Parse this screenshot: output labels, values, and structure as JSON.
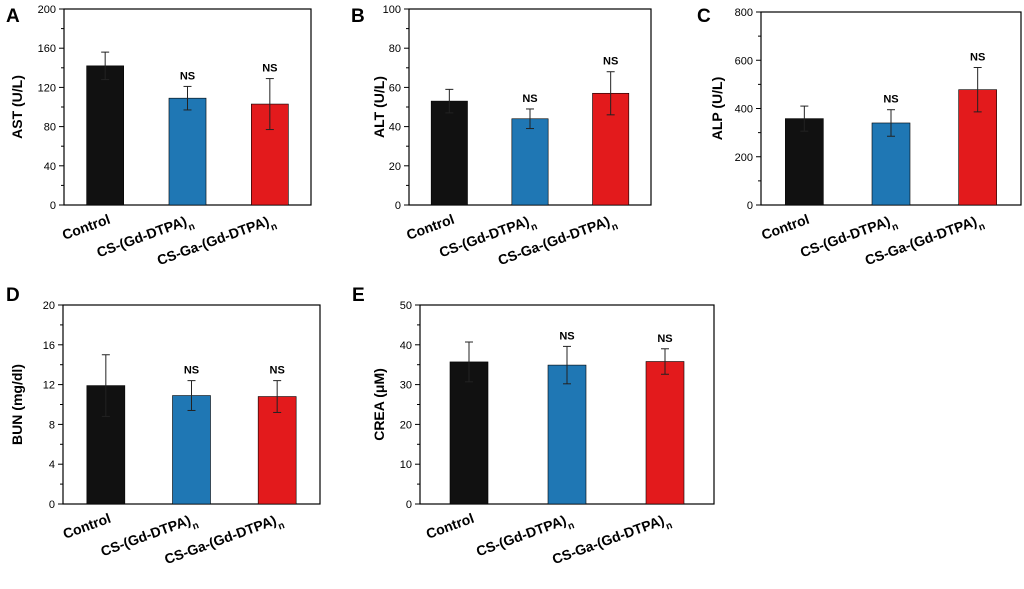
{
  "chart_data": [
    {
      "panel": "A",
      "type": "bar",
      "categories": [
        "Control",
        "CS-(Gd-DTPA)",
        "CS-Ga-(Gd-DTPA)"
      ],
      "category_subscripts": [
        "",
        "n",
        "n"
      ],
      "values": [
        142,
        109,
        103
      ],
      "errors": [
        14,
        12,
        26
      ],
      "significance": [
        "",
        "NS",
        "NS"
      ],
      "colors": [
        "#111111",
        "#1f77b4",
        "#e31a1c"
      ],
      "ylabel": "AST (U/L)",
      "ylim": [
        0,
        200
      ],
      "yticks": [
        0,
        40,
        80,
        120,
        160,
        200
      ]
    },
    {
      "panel": "B",
      "type": "bar",
      "categories": [
        "Control",
        "CS-(Gd-DTPA)",
        "CS-Ga-(Gd-DTPA)"
      ],
      "category_subscripts": [
        "",
        "n",
        "n"
      ],
      "values": [
        53,
        44,
        57
      ],
      "errors": [
        6,
        5,
        11
      ],
      "significance": [
        "",
        "NS",
        "NS"
      ],
      "colors": [
        "#111111",
        "#1f77b4",
        "#e31a1c"
      ],
      "ylabel": "ALT (U/L)",
      "ylim": [
        0,
        100
      ],
      "yticks": [
        0,
        20,
        40,
        60,
        80,
        100
      ]
    },
    {
      "panel": "C",
      "type": "bar",
      "categories": [
        "Control",
        "CS-(Gd-DTPA)",
        "CS-Ga-(Gd-DTPA)"
      ],
      "category_subscripts": [
        "",
        "n",
        "n"
      ],
      "values": [
        358,
        340,
        478
      ],
      "errors": [
        52,
        55,
        92
      ],
      "significance": [
        "",
        "NS",
        "NS"
      ],
      "colors": [
        "#111111",
        "#1f77b4",
        "#e31a1c"
      ],
      "ylabel": "ALP (U/L)",
      "ylim": [
        0,
        800
      ],
      "yticks": [
        0,
        200,
        400,
        600,
        800
      ]
    },
    {
      "panel": "D",
      "type": "bar",
      "categories": [
        "Control",
        "CS-(Gd-DTPA)",
        "CS-Ga-(Gd-DTPA)"
      ],
      "category_subscripts": [
        "",
        "n",
        "n"
      ],
      "values": [
        11.9,
        10.9,
        10.8
      ],
      "errors": [
        3.1,
        1.5,
        1.6
      ],
      "significance": [
        "",
        "NS",
        "NS"
      ],
      "colors": [
        "#111111",
        "#1f77b4",
        "#e31a1c"
      ],
      "ylabel": "BUN (mg/dl)",
      "ylim": [
        0,
        20
      ],
      "yticks": [
        0,
        4,
        8,
        12,
        16,
        20
      ]
    },
    {
      "panel": "E",
      "type": "bar",
      "categories": [
        "Control",
        "CS-(Gd-DTPA)",
        "CS-Ga-(Gd-DTPA)"
      ],
      "category_subscripts": [
        "",
        "n",
        "n"
      ],
      "values": [
        35.7,
        34.9,
        35.8
      ],
      "errors": [
        5,
        4.7,
        3.2
      ],
      "significance": [
        "",
        "NS",
        "NS"
      ],
      "colors": [
        "#111111",
        "#1f77b4",
        "#e31a1c"
      ],
      "ylabel": "CREA (μM)",
      "ylim": [
        0,
        50
      ],
      "yticks": [
        0,
        10,
        20,
        30,
        40,
        50
      ]
    }
  ]
}
